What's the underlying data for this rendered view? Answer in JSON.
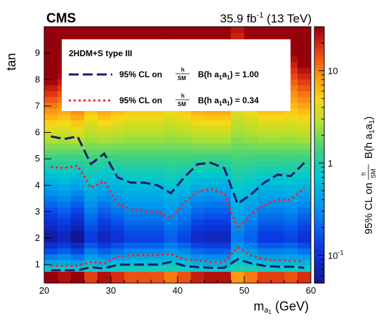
{
  "header": {
    "experiment": "CMS",
    "luminosity": "35.9 fb",
    "lumi_exp": "-1",
    "energy": " (13 TeV)"
  },
  "legend": {
    "title": "2HDM+S type III",
    "entries": [
      {
        "prefix": "95% CL on",
        "frac_num": "h",
        "frac_den": "SM",
        "suffix": "B(h  a",
        "sub1": "1",
        "mid": "a",
        "sub2": "1",
        "end": ") = 1.00",
        "color": "#1a1a6e",
        "style": "dashed"
      },
      {
        "prefix": "95% CL on",
        "frac_num": "h",
        "frac_den": "SM",
        "suffix": "B(h  a",
        "sub1": "1",
        "mid": "a",
        "sub2": "1",
        "end": ") = 0.34",
        "color": "#ff2020",
        "style": "dotted"
      }
    ]
  },
  "axes": {
    "x_main": "m",
    "x_sub": "a",
    "x_sub2": "1",
    "x_unit": " (GeV)",
    "y_label": "tan",
    "z_prefix": "95% CL on",
    "z_frac_num": "h",
    "z_frac_den": "SM",
    "z_suffix": "B(h  a",
    "z_sub1": "1",
    "z_mid": "a",
    "z_sub2": "1",
    "z_end": ")"
  },
  "chart_data": {
    "type": "heatmap",
    "title": "",
    "xlabel": "m_a1 (GeV)",
    "ylabel": "tan",
    "zlabel": "95% CL on σh/σSM × B(h → a1a1)",
    "xlim": [
      20,
      60
    ],
    "ylim": [
      0.3,
      10
    ],
    "zlim": [
      0.05,
      30
    ],
    "z_scale": "log",
    "x_ticks": [
      20,
      30,
      40,
      50,
      60
    ],
    "y_ticks": [
      1,
      2,
      3,
      4,
      5,
      6,
      7,
      8,
      9
    ],
    "z_ticks": [
      {
        "value": 0.1,
        "label": "10",
        "exp": "-1"
      },
      {
        "value": 1,
        "label": "1",
        "exp": ""
      },
      {
        "value": 10,
        "label": "10",
        "exp": ""
      }
    ],
    "column_centers": [
      21,
      23,
      25,
      27,
      29,
      31,
      33,
      35,
      37,
      39,
      41,
      43,
      45,
      47,
      49,
      51,
      53,
      55,
      57,
      59
    ],
    "column_strength": [
      1.1,
      1.0,
      1.15,
      0.85,
      1.0,
      0.9,
      0.8,
      0.8,
      0.8,
      0.7,
      0.8,
      0.95,
      1.0,
      1.0,
      0.6,
      0.7,
      0.85,
      0.85,
      0.8,
      0.9
    ],
    "series": [
      {
        "name": "B(h  a1a1) = 1.00",
        "color": "#1a1a6e",
        "style": "dashed",
        "upper": {
          "x": [
            21,
            23,
            25,
            27,
            29,
            31,
            33,
            35,
            37,
            39,
            41,
            43,
            45,
            47,
            49,
            51,
            53,
            55,
            57,
            59
          ],
          "y": [
            5.85,
            5.75,
            5.85,
            4.8,
            5.2,
            4.3,
            4.1,
            4.1,
            4.0,
            3.7,
            4.3,
            4.8,
            4.85,
            4.65,
            3.3,
            3.65,
            4.1,
            4.4,
            4.35,
            4.85
          ]
        },
        "lower": {
          "x": [
            21,
            23,
            25,
            27,
            29,
            31,
            33,
            35,
            37,
            39,
            41,
            43,
            45,
            47,
            49,
            51,
            53,
            55,
            57,
            59
          ],
          "y": [
            0.78,
            0.78,
            0.78,
            0.9,
            0.85,
            1.0,
            1.0,
            1.0,
            1.0,
            1.1,
            0.95,
            0.9,
            0.88,
            0.88,
            1.2,
            1.05,
            0.95,
            0.92,
            0.92,
            0.88
          ]
        }
      },
      {
        "name": "B(h  a1a1) = 0.34",
        "color": "#ff2020",
        "style": "dotted",
        "upper": {
          "x": [
            21,
            23,
            25,
            27,
            29,
            31,
            33,
            35,
            37,
            39,
            41,
            43,
            45,
            47,
            49,
            51,
            53,
            55,
            57,
            59
          ],
          "y": [
            4.7,
            4.65,
            4.75,
            3.9,
            4.15,
            3.3,
            3.1,
            3.0,
            3.0,
            2.75,
            3.35,
            3.75,
            3.85,
            3.7,
            2.35,
            2.9,
            3.25,
            3.45,
            3.45,
            3.9
          ]
        },
        "lower": {
          "x": [
            21,
            23,
            25,
            27,
            29,
            31,
            33,
            35,
            37,
            39,
            41,
            43,
            45,
            47,
            49,
            51,
            53,
            55,
            57,
            59
          ],
          "y": [
            0.95,
            0.95,
            0.95,
            1.1,
            1.05,
            1.3,
            1.35,
            1.35,
            1.35,
            1.4,
            1.2,
            1.15,
            1.1,
            1.1,
            1.65,
            1.35,
            1.2,
            1.15,
            1.15,
            1.1
          ]
        }
      }
    ]
  }
}
